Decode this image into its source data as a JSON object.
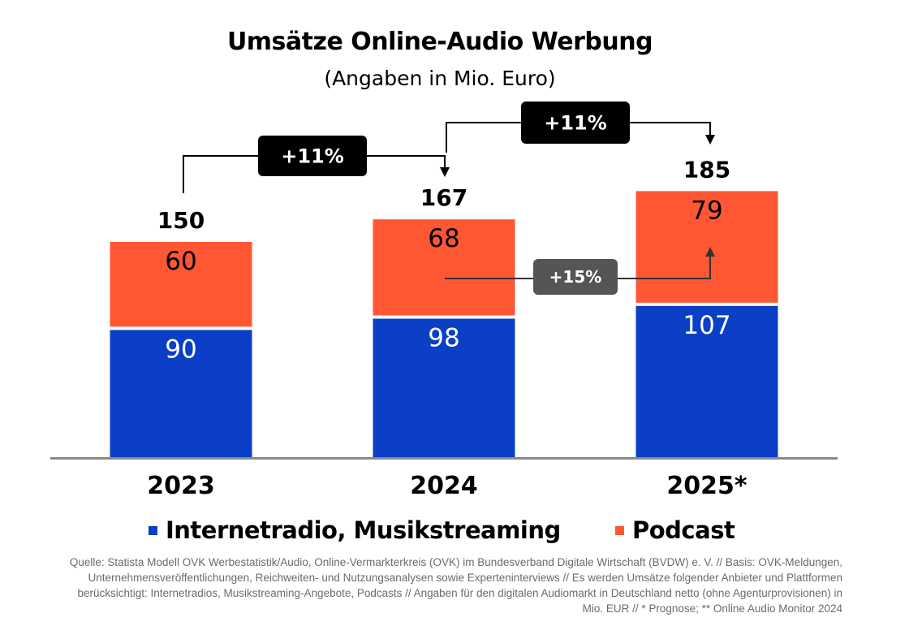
{
  "title": "Umsätze Online-Audio Werbung",
  "subtitle": "(Angaben in Mio. Euro)",
  "colors": {
    "internetradio": "#0a3fc6",
    "podcast": "#ff5733",
    "badge_dark": "#000000",
    "badge_grey": "#555555",
    "baseline": "#8a8a8a"
  },
  "chart_data": {
    "type": "bar",
    "stacked": true,
    "categories": [
      "2023",
      "2024",
      "2025*"
    ],
    "series": [
      {
        "name": "Internetradio, Musikstreaming",
        "values": [
          90,
          98,
          107
        ],
        "color": "#0a3fc6"
      },
      {
        "name": "Podcast",
        "values": [
          60,
          68,
          79
        ],
        "color": "#ff5733"
      }
    ],
    "totals": [
      150,
      167,
      185
    ],
    "annotations": [
      {
        "label": "+11%",
        "from": "2023",
        "to": "2024",
        "refers_to": "total"
      },
      {
        "label": "+11%",
        "from": "2024",
        "to": "2025*",
        "refers_to": "total"
      },
      {
        "label": "+15%",
        "from": "2024",
        "to": "2025*",
        "refers_to": "Podcast"
      }
    ],
    "ylim": [
      0,
      200
    ],
    "grid": false,
    "legend_position": "bottom"
  },
  "legend": [
    {
      "label": "Internetradio, Musikstreaming",
      "color": "#0a3fc6"
    },
    {
      "label": "Podcast",
      "color": "#ff5733"
    }
  ],
  "source": "Quelle: Statista Modell OVK Werbestatistik/Audio, Online-Vermarkterkreis (OVK) im Bundesverband Digitale Wirtschaft (BVDW) e. V. // Basis: OVK-Meldungen, Unternehmensveröffentlichungen, Reichweiten- und Nutzungsanalysen sowie Experteninterviews // Es werden Umsätze folgender Anbieter und Plattformen berücksichtigt: Internetradios, Musikstreaming-Angebote, Podcasts // Angaben für den digitalen Audiomarkt in Deutschland netto (ohne Agenturprovisionen) in Mio. EUR // * Prognose; ** Online Audio Monitor 2024"
}
